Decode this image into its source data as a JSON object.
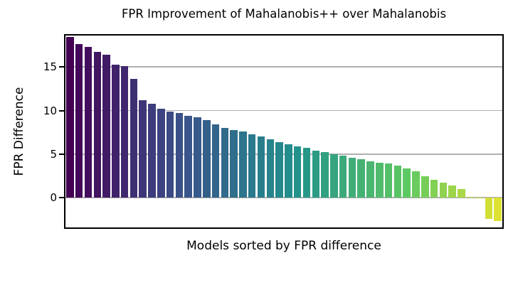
{
  "chart_data": {
    "type": "bar",
    "title": "FPR Improvement of Mahalanobis++ over Mahalanobis",
    "xlabel": "Models sorted by FPR difference",
    "ylabel": "FPR Difference",
    "yticks": [
      0,
      5,
      10,
      15
    ],
    "ylim": [
      -3.4,
      18.6
    ],
    "grid": "horizontal",
    "legend": "none",
    "colormap": "viridis",
    "colormap_stops": [
      [
        0.0,
        "#440154"
      ],
      [
        0.25,
        "#3b528b"
      ],
      [
        0.5,
        "#21918c"
      ],
      [
        0.75,
        "#5ec962"
      ],
      [
        1.0,
        "#fde725"
      ]
    ],
    "axis_color": "#000000",
    "grid_color": "#b0b0b0",
    "values": [
      18.4,
      17.6,
      17.3,
      16.7,
      16.4,
      15.3,
      15.1,
      13.6,
      11.2,
      10.8,
      10.2,
      9.9,
      9.7,
      9.4,
      9.2,
      8.9,
      8.4,
      8.0,
      7.8,
      7.6,
      7.3,
      7.0,
      6.7,
      6.4,
      6.1,
      5.9,
      5.7,
      5.4,
      5.2,
      5.0,
      4.8,
      4.6,
      4.4,
      4.2,
      4.0,
      3.9,
      3.7,
      3.4,
      3.0,
      2.5,
      2.1,
      1.7,
      1.4,
      1.0,
      0.08,
      0.04,
      -2.4,
      -2.7
    ]
  }
}
